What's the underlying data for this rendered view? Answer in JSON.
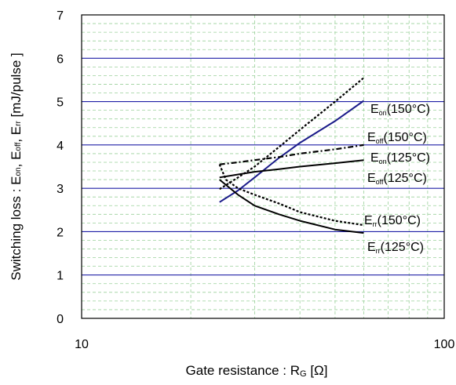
{
  "chart_data": {
    "type": "line",
    "x_scale": "log",
    "xlim": [
      10,
      100
    ],
    "ylim": [
      0,
      7
    ],
    "x_ticks": [
      10,
      100
    ],
    "x_tick_labels": [
      "10",
      "100"
    ],
    "y_ticks": [
      0,
      1,
      2,
      3,
      4,
      5,
      6,
      7
    ],
    "y_tick_labels": [
      "0",
      "1",
      "2",
      "3",
      "4",
      "5",
      "6",
      "7"
    ],
    "grid": "major y lines blue, minor dashed grid",
    "colors": {
      "major_grid": "#1f1fa6",
      "minor_grid": "#9bd19b",
      "axis": "#000000",
      "navy": "#1b1b8a"
    },
    "xlabel": {
      "main": "Gate resistance : R",
      "sub": "G",
      "tail": " [Ω]"
    },
    "ylabel": [
      {
        "t": "Switching loss  : E"
      },
      {
        "t": "on",
        "sub": true
      },
      {
        "t": ",  E"
      },
      {
        "t": "off",
        "sub": true
      },
      {
        "t": ",  E"
      },
      {
        "t": "rr",
        "sub": true
      },
      {
        "t": "  [mJ/pulse ]"
      }
    ],
    "series": [
      {
        "name": "Eon(150°C)",
        "color": "#000000",
        "style": "dotted",
        "x": [
          24,
          27,
          30,
          35,
          40,
          50,
          60
        ],
        "y": [
          2.98,
          3.25,
          3.5,
          3.95,
          4.35,
          5.0,
          5.55
        ]
      },
      {
        "name": "Eon(125°C)",
        "color": "#1b1b8a",
        "style": "solid",
        "x": [
          24,
          27,
          30,
          35,
          40,
          50,
          60
        ],
        "y": [
          2.68,
          2.95,
          3.25,
          3.7,
          4.05,
          4.55,
          5.02
        ]
      },
      {
        "name": "Eoff(150°C)",
        "color": "#000000",
        "style": "dashdot",
        "x": [
          24,
          27,
          30,
          35,
          40,
          50,
          60
        ],
        "y": [
          3.55,
          3.6,
          3.65,
          3.72,
          3.8,
          3.9,
          4.0
        ]
      },
      {
        "name": "Eoff(125°C)",
        "color": "#000000",
        "style": "solid",
        "x": [
          24,
          27,
          30,
          35,
          40,
          50,
          60
        ],
        "y": [
          3.25,
          3.32,
          3.38,
          3.44,
          3.5,
          3.58,
          3.65
        ]
      },
      {
        "name": "Err(150°C)",
        "color": "#000000",
        "style": "dotted",
        "x": [
          24,
          25,
          27,
          30,
          35,
          40,
          50,
          60
        ],
        "y": [
          3.55,
          3.2,
          3.0,
          2.85,
          2.65,
          2.45,
          2.25,
          2.15
        ]
      },
      {
        "name": "Err(125°C)",
        "color": "#000000",
        "style": "solid",
        "x": [
          24,
          27,
          30,
          35,
          40,
          50,
          60
        ],
        "y": [
          3.2,
          2.85,
          2.6,
          2.4,
          2.25,
          2.05,
          1.97
        ]
      }
    ],
    "annotations": [
      {
        "label": "E",
        "sub": "on",
        "tail": "(150°C)"
      },
      {
        "label": "E",
        "sub": "on",
        "tail": "(125°C)"
      },
      {
        "label": "E",
        "sub": "off",
        "tail": "(150°C)"
      },
      {
        "label": "E",
        "sub": "off",
        "tail": "(125°C)"
      },
      {
        "label": "E",
        "sub": "rr",
        "tail": "(150°C)"
      },
      {
        "label": "E",
        "sub": "rr",
        "tail": "(125°C)"
      }
    ]
  }
}
